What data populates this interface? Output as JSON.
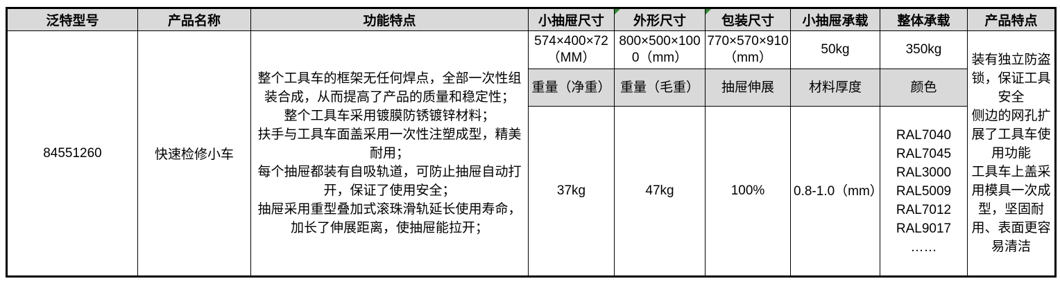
{
  "table": {
    "headers": [
      "泛特型号",
      "产品名称",
      "功能特点",
      "小抽屉尺寸",
      "外形尺寸",
      "包装尺寸",
      "小抽屉承载",
      "整体承载",
      "产品特点"
    ],
    "model": "84551260",
    "product_name": "快速检修小车",
    "features": [
      "整个工具车的框架无任何焊点，全部一次性组装合成，从而提高了产品的质量和稳定性；",
      "整个工具车采用镀膜防锈镀锌材料；",
      "扶手与工具车面盖采用一次性注塑成型，精美耐用；",
      "每个抽屉都装有自吸轨道，可防止抽屉自动打开，保证了使用安全；",
      "抽屉采用重型叠加式滚珠滑轨延长使用寿命，加长了伸展距离，使抽屉能拉开；"
    ],
    "sizes": {
      "drawer": "574×400×72（MM）",
      "overall": "800×500×1000（mm）",
      "package": "770×570×910（mm）"
    },
    "loads": {
      "drawer": "50kg",
      "overall": "350kg"
    },
    "sub_headers": [
      "重量（净重）",
      "重量（毛重）",
      "抽屉伸展",
      "材料厚度",
      "颜色"
    ],
    "details": {
      "net_weight": "37kg",
      "gross_weight": "47kg",
      "drawer_extension": "100%",
      "material_thickness": "0.8-1.0（mm）"
    },
    "color_options": [
      "RAL7040",
      "RAL7045",
      "RAL3000",
      "RAL5009",
      "RAL7012",
      "RAL9017",
      "……"
    ],
    "product_features": [
      "装有独立防盗锁，保证工具安全",
      "侧边的网孔扩展了工具车使用功能",
      "工具车上盖采用模具一次成型，坚固耐用、表面更容易清洁"
    ],
    "colors": {
      "header_bg": "#d9d9d9",
      "border": "#000000",
      "error_marker_green": "#2e8b2e"
    }
  }
}
